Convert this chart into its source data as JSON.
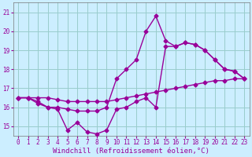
{
  "xlabel": "Windchill (Refroidissement éolien,°C)",
  "bg_color": "#cceeff",
  "grid_color": "#99cccc",
  "line_color": "#990099",
  "xlim": [
    -0.5,
    23.5
  ],
  "ylim": [
    14.5,
    21.5
  ],
  "yticks": [
    15,
    16,
    17,
    18,
    19,
    20,
    21
  ],
  "xticks": [
    0,
    1,
    2,
    3,
    4,
    5,
    6,
    7,
    8,
    9,
    10,
    11,
    12,
    13,
    14,
    15,
    16,
    17,
    18,
    19,
    20,
    21,
    22,
    23
  ],
  "line1_x": [
    0,
    1,
    2,
    3,
    4,
    5,
    6,
    7,
    8,
    9,
    10,
    11,
    12,
    13,
    14,
    15,
    16,
    17,
    18,
    19,
    20,
    21,
    22,
    23
  ],
  "line1_y": [
    16.5,
    16.5,
    16.5,
    16.5,
    16.4,
    16.3,
    16.3,
    16.3,
    16.3,
    16.3,
    16.4,
    16.5,
    16.6,
    16.7,
    16.8,
    16.9,
    17.0,
    17.1,
    17.2,
    17.3,
    17.4,
    17.4,
    17.5,
    17.5
  ],
  "line2_x": [
    0,
    1,
    2,
    3,
    4,
    5,
    6,
    7,
    8,
    9,
    10,
    11,
    12,
    13,
    14,
    15,
    16,
    17,
    18,
    19,
    20,
    21,
    22,
    23
  ],
  "line2_y": [
    16.5,
    16.5,
    16.3,
    16.0,
    16.0,
    15.9,
    15.8,
    15.8,
    15.8,
    16.0,
    17.5,
    18.0,
    18.5,
    20.0,
    20.8,
    19.5,
    19.2,
    19.4,
    19.3,
    19.0,
    18.5,
    18.0,
    17.9,
    17.5
  ],
  "line3_x": [
    0,
    1,
    2,
    3,
    4,
    5,
    6,
    7,
    8,
    9,
    10,
    11,
    12,
    13,
    14,
    15,
    16,
    17,
    18,
    19,
    20,
    21,
    22,
    23
  ],
  "line3_y": [
    16.5,
    16.5,
    16.2,
    16.0,
    15.9,
    14.8,
    15.2,
    14.7,
    14.6,
    14.8,
    15.9,
    16.0,
    16.3,
    16.5,
    16.0,
    19.2,
    19.2,
    19.4,
    19.3,
    19.0,
    18.5,
    18.0,
    17.9,
    17.5
  ],
  "marker": "D",
  "markersize": 2.5,
  "linewidth": 1.0,
  "tick_fontsize": 5.5,
  "xlabel_fontsize": 6.5
}
